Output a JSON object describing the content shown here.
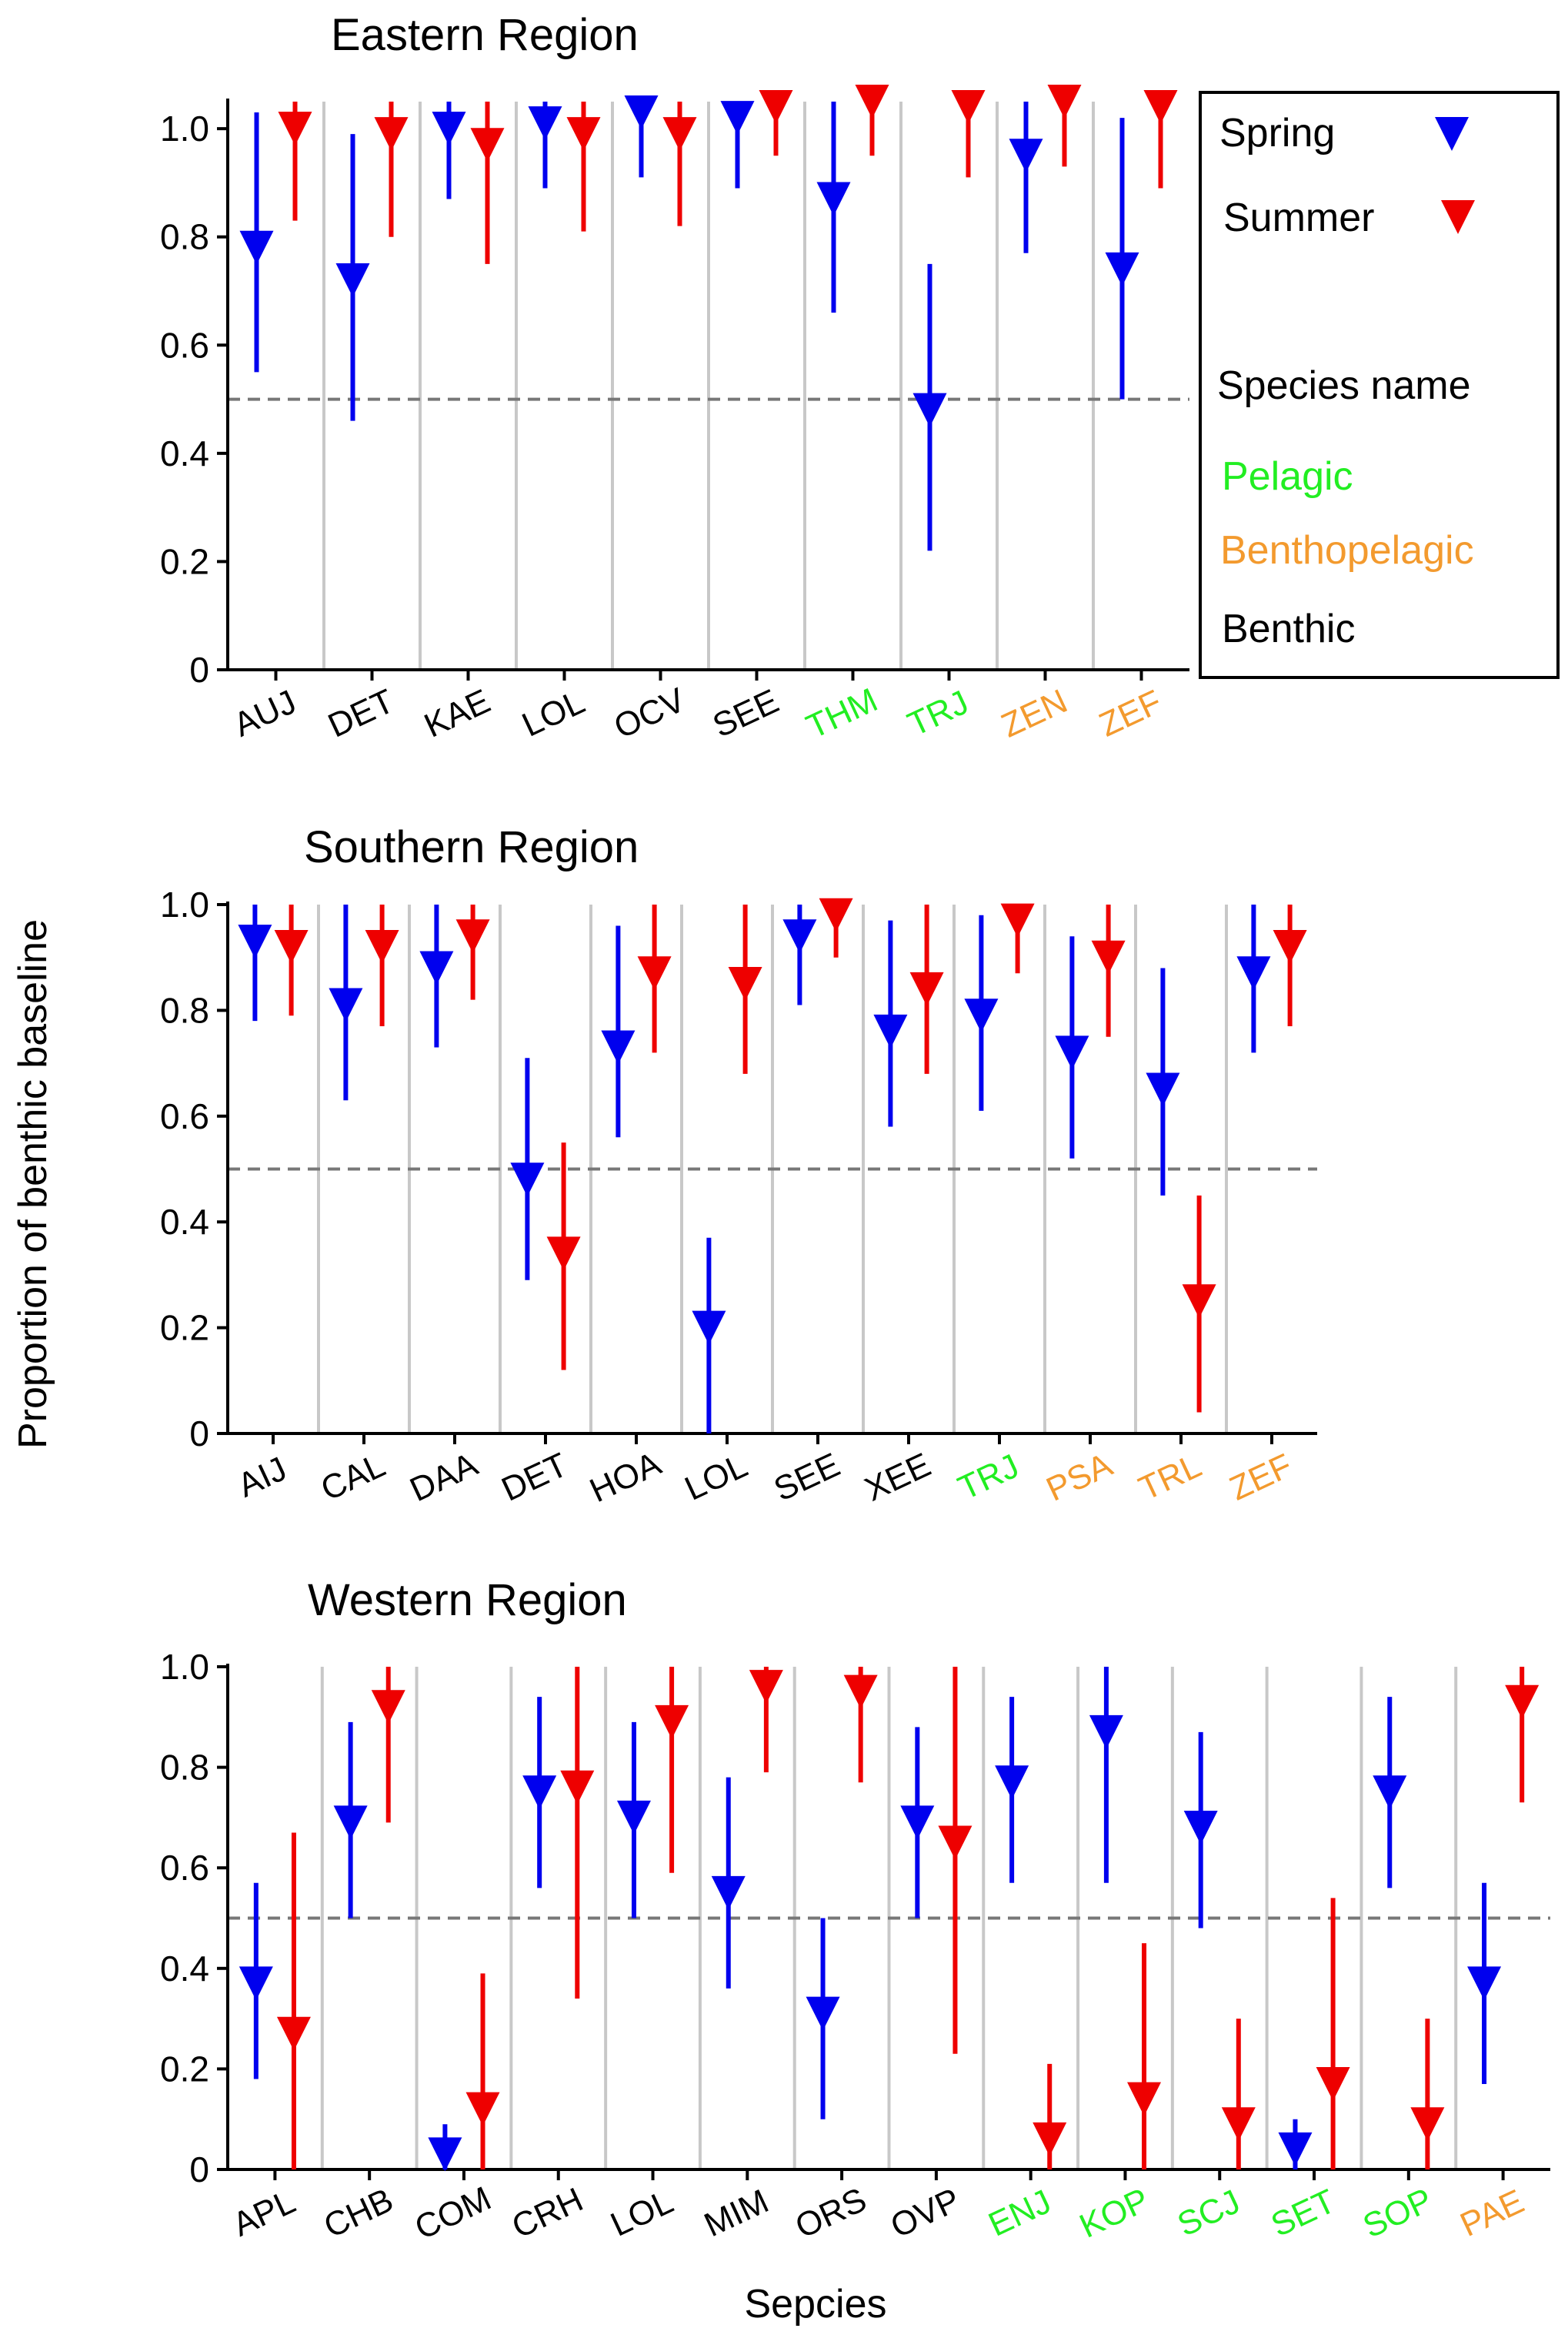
{
  "figure": {
    "y_label": "Proportion of benthic baseline",
    "x_label": "Sepcies"
  },
  "legend": {
    "spring_label": "Spring",
    "summer_label": "Summer",
    "species_name_label": "Species name",
    "pelagic_label": "Pelagic",
    "benthopelagic_label": "Benthopelagic",
    "benthic_label": "Benthic"
  },
  "colors": {
    "spring": "#0000ee",
    "summer": "#ee0000",
    "pelagic": "#22ee22",
    "benthopelagic": "#f39a2e",
    "benthic": "#000000",
    "reference_line": "#777777",
    "separator": "#c8c8c8"
  },
  "chart_data": [
    {
      "type": "error-bar",
      "title": "Eastern Region",
      "ylim": [
        0,
        1.05
      ],
      "y_ticks": [
        "0",
        "0.2",
        "0.4",
        "0.6",
        "0.8",
        "1.0"
      ],
      "reference_line": 0.5,
      "categories": [
        "AUJ",
        "DET",
        "KAE",
        "LOL",
        "OCV",
        "SEE",
        "THM",
        "TRJ",
        "ZEN",
        "ZEF"
      ],
      "habitats": [
        "benthic",
        "benthic",
        "benthic",
        "benthic",
        "benthic",
        "benthic",
        "pelagic",
        "pelagic",
        "benthopelagic",
        "benthopelagic"
      ],
      "series": [
        {
          "name": "Spring",
          "values": [
            0.78,
            0.72,
            1.0,
            1.01,
            1.03,
            1.02,
            0.87,
            0.48,
            0.95,
            0.74
          ],
          "lower": [
            0.55,
            0.46,
            0.87,
            0.89,
            0.91,
            0.89,
            0.66,
            0.22,
            0.77,
            0.5
          ],
          "upper": [
            1.03,
            0.99,
            1.08,
            1.08,
            1.08,
            1.08,
            1.08,
            0.75,
            1.08,
            1.02
          ]
        },
        {
          "name": "Summer",
          "values": [
            1.0,
            0.99,
            0.97,
            0.99,
            0.99,
            1.04,
            1.05,
            1.04,
            1.05,
            1.04
          ],
          "lower": [
            0.83,
            0.8,
            0.75,
            0.81,
            0.82,
            0.95,
            0.95,
            0.91,
            0.93,
            0.89
          ],
          "upper": [
            1.08,
            1.08,
            1.08,
            1.08,
            1.08,
            1.08,
            1.08,
            1.08,
            1.08,
            1.08
          ]
        }
      ]
    },
    {
      "type": "error-bar",
      "title": "Southern Region",
      "ylim": [
        0,
        1.0
      ],
      "y_ticks": [
        "0",
        "0.2",
        "0.4",
        "0.6",
        "0.8",
        "1.0"
      ],
      "reference_line": 0.5,
      "categories": [
        "AIJ",
        "CAL",
        "DAA",
        "DET",
        "HOA",
        "LOL",
        "SEE",
        "XEE",
        "TRJ",
        "PSA",
        "TRL",
        "ZEF"
      ],
      "habitats": [
        "benthic",
        "benthic",
        "benthic",
        "benthic",
        "benthic",
        "benthic",
        "benthic",
        "benthic",
        "pelagic",
        "benthopelagic",
        "benthopelagic",
        "benthopelagic"
      ],
      "series": [
        {
          "name": "Spring",
          "values": [
            0.93,
            0.81,
            0.88,
            0.48,
            0.73,
            0.2,
            0.94,
            0.76,
            0.79,
            0.72,
            0.65,
            0.87
          ],
          "lower": [
            0.78,
            0.63,
            0.73,
            0.29,
            0.56,
            0.0,
            0.81,
            0.58,
            0.61,
            0.52,
            0.45,
            0.72
          ],
          "upper": [
            1.0,
            1.0,
            1.0,
            0.71,
            0.96,
            0.37,
            1.0,
            0.97,
            0.98,
            0.94,
            0.88,
            1.0
          ]
        },
        {
          "name": "Summer",
          "values": [
            0.92,
            0.92,
            0.94,
            0.34,
            0.87,
            0.85,
            0.98,
            0.84,
            0.97,
            0.9,
            0.25,
            0.92
          ],
          "lower": [
            0.79,
            0.77,
            0.82,
            0.12,
            0.72,
            0.68,
            0.9,
            0.68,
            0.87,
            0.75,
            0.04,
            0.77
          ],
          "upper": [
            1.0,
            1.0,
            1.0,
            0.55,
            1.0,
            1.0,
            1.0,
            1.0,
            1.0,
            1.0,
            0.45,
            1.0
          ]
        }
      ]
    },
    {
      "type": "error-bar",
      "title": "Western Region",
      "ylim": [
        0,
        1.0
      ],
      "y_ticks": [
        "0",
        "0.2",
        "0.4",
        "0.6",
        "0.8",
        "1.0"
      ],
      "reference_line": 0.5,
      "categories": [
        "APL",
        "CHB",
        "COM",
        "CRH",
        "LOL",
        "MIM",
        "ORS",
        "OVP",
        "ENJ",
        "KOP",
        "SCJ",
        "SET",
        "SOP",
        "PAE"
      ],
      "habitats": [
        "benthic",
        "benthic",
        "benthic",
        "benthic",
        "benthic",
        "benthic",
        "benthic",
        "benthic",
        "pelagic",
        "pelagic",
        "pelagic",
        "pelagic",
        "pelagic",
        "benthopelagic"
      ],
      "series": [
        {
          "name": "Spring",
          "values": [
            0.37,
            0.69,
            0.03,
            0.75,
            0.7,
            0.55,
            0.31,
            0.69,
            0.77,
            0.87,
            0.68,
            0.04,
            0.75,
            0.37
          ],
          "lower": [
            0.18,
            0.5,
            0.0,
            0.56,
            0.5,
            0.36,
            0.1,
            0.5,
            0.57,
            0.57,
            0.48,
            0.0,
            0.56,
            0.17
          ],
          "upper": [
            0.57,
            0.89,
            0.09,
            0.94,
            0.89,
            0.78,
            0.5,
            0.88,
            0.94,
            1.0,
            0.87,
            0.1,
            0.94,
            0.57
          ]
        },
        {
          "name": "Summer",
          "values": [
            0.27,
            0.92,
            0.12,
            0.76,
            0.89,
            0.96,
            0.95,
            0.65,
            0.06,
            0.14,
            0.09,
            0.17,
            0.09,
            0.93
          ],
          "lower": [
            0.0,
            0.69,
            0.0,
            0.34,
            0.59,
            0.79,
            0.77,
            0.23,
            0.0,
            0.0,
            0.0,
            0.0,
            0.0,
            0.73
          ],
          "upper": [
            0.67,
            1.0,
            0.39,
            1.0,
            1.0,
            1.0,
            1.0,
            1.0,
            0.21,
            0.45,
            0.3,
            0.54,
            0.3,
            1.0
          ]
        }
      ]
    }
  ]
}
